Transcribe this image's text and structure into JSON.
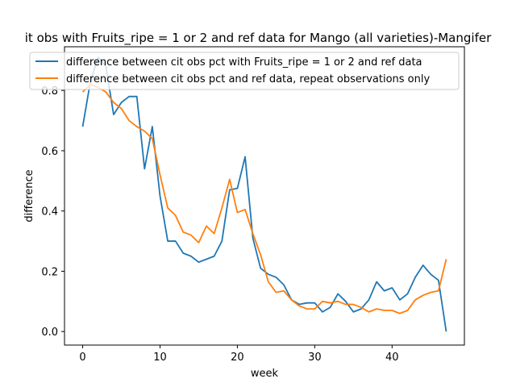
{
  "chart_data": {
    "type": "line",
    "title": "it obs with Fruits_ripe = 1 or 2 and ref data for Mango (all varieties)-Mangifer",
    "xlabel": "week",
    "ylabel": "difference",
    "xlim": [
      -2.35,
      49.35
    ],
    "ylim": [
      -0.045,
      0.945
    ],
    "xticks": [
      0,
      10,
      20,
      30,
      40
    ],
    "yticks": [
      0.0,
      0.2,
      0.4,
      0.6,
      0.8
    ],
    "xtick_labels": [
      "0",
      "10",
      "20",
      "30",
      "40"
    ],
    "ytick_labels": [
      "0.0",
      "0.2",
      "0.4",
      "0.6",
      "0.8"
    ],
    "grid": false,
    "legend_position": "top",
    "x": [
      0,
      1,
      2,
      3,
      4,
      5,
      6,
      7,
      8,
      9,
      10,
      11,
      12,
      13,
      14,
      15,
      16,
      17,
      18,
      19,
      20,
      21,
      22,
      23,
      24,
      25,
      26,
      27,
      28,
      29,
      30,
      31,
      32,
      33,
      34,
      35,
      36,
      37,
      38,
      39,
      40,
      41,
      42,
      43,
      44,
      45,
      46,
      47
    ],
    "series": [
      {
        "name": "difference between cit obs pct with Fruits_ripe = 1 or 2 and ref data",
        "color": "#1f77b4",
        "values": [
          0.68,
          0.83,
          0.91,
          0.88,
          0.72,
          0.76,
          0.78,
          0.78,
          0.54,
          0.68,
          0.45,
          0.3,
          0.3,
          0.26,
          0.25,
          0.23,
          0.24,
          0.25,
          0.3,
          0.47,
          0.475,
          0.58,
          0.31,
          0.21,
          0.19,
          0.18,
          0.155,
          0.105,
          0.09,
          0.095,
          0.095,
          0.065,
          0.08,
          0.125,
          0.1,
          0.065,
          0.075,
          0.105,
          0.165,
          0.135,
          0.145,
          0.105,
          0.125,
          0.18,
          0.22,
          0.19,
          0.17,
          0.0
        ]
      },
      {
        "name": "difference between cit obs pct and ref data, repeat observations only",
        "color": "#ff7f0e",
        "values": [
          0.795,
          0.82,
          0.81,
          0.795,
          0.76,
          0.74,
          0.7,
          0.68,
          0.665,
          0.64,
          0.52,
          0.41,
          0.385,
          0.33,
          0.32,
          0.295,
          0.35,
          0.325,
          0.41,
          0.505,
          0.395,
          0.405,
          0.325,
          0.255,
          0.165,
          0.13,
          0.135,
          0.105,
          0.085,
          0.075,
          0.075,
          0.1,
          0.095,
          0.1,
          0.09,
          0.09,
          0.08,
          0.065,
          0.075,
          0.07,
          0.07,
          0.06,
          0.07,
          0.105,
          0.12,
          0.13,
          0.135,
          0.24
        ]
      }
    ]
  }
}
